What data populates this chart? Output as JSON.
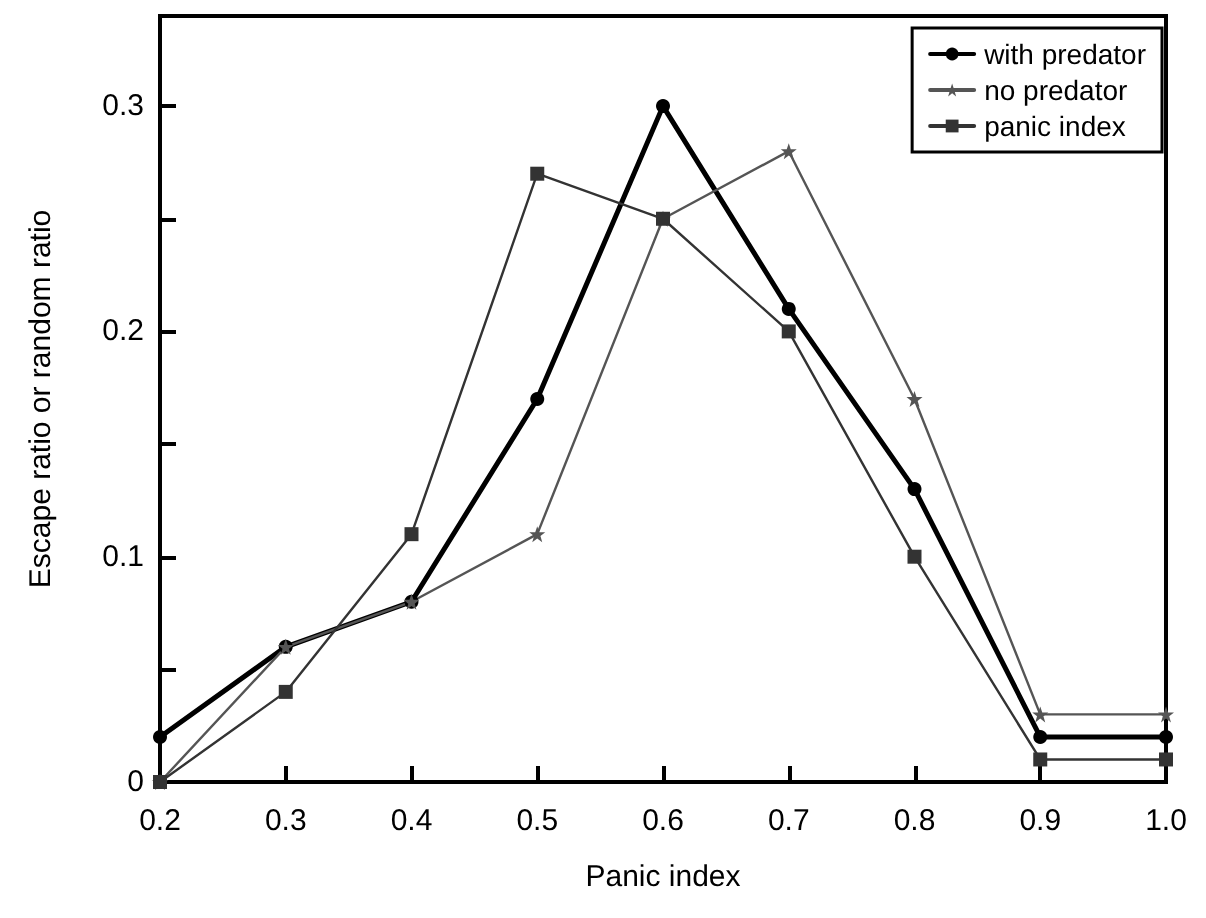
{
  "chart_data": {
    "type": "line",
    "xlabel": "Panic index",
    "ylabel": "Escape ratio or random ratio",
    "x": [
      0.2,
      0.3,
      0.4,
      0.5,
      0.6,
      0.7,
      0.8,
      0.9,
      1.0
    ],
    "series": [
      {
        "name": "with predator",
        "color": "#000000",
        "marker": "circle",
        "values": [
          0.02,
          0.06,
          0.08,
          0.17,
          0.3,
          0.21,
          0.13,
          0.02,
          0.02
        ]
      },
      {
        "name": "no predator",
        "color": "#555555",
        "marker": "star",
        "values": [
          0.0,
          0.06,
          0.08,
          0.11,
          0.25,
          0.28,
          0.17,
          0.03,
          0.03
        ]
      },
      {
        "name": "panic index",
        "color": "#333333",
        "marker": "square",
        "values": [
          0.0,
          0.04,
          0.11,
          0.27,
          0.25,
          0.2,
          0.1,
          0.01,
          0.01
        ]
      }
    ],
    "xlim": [
      0.2,
      1.0
    ],
    "xticks": [
      0.2,
      {
        "value": 0.3,
        "label": "0.3"
      },
      0.4,
      0.5,
      0.6,
      0.7,
      0.8,
      0.9,
      {
        "value": 1.0,
        "label": "1.0"
      }
    ],
    "ylim": [
      0,
      0.34
    ],
    "yticks": [
      0,
      {
        "value": 0.05,
        "label": null
      },
      0.1,
      {
        "value": 0.15,
        "label": null
      },
      0.2,
      {
        "value": 0.25,
        "label": null
      },
      0.3
    ],
    "legend": "top right",
    "grid": false,
    "line_style": "solid"
  }
}
